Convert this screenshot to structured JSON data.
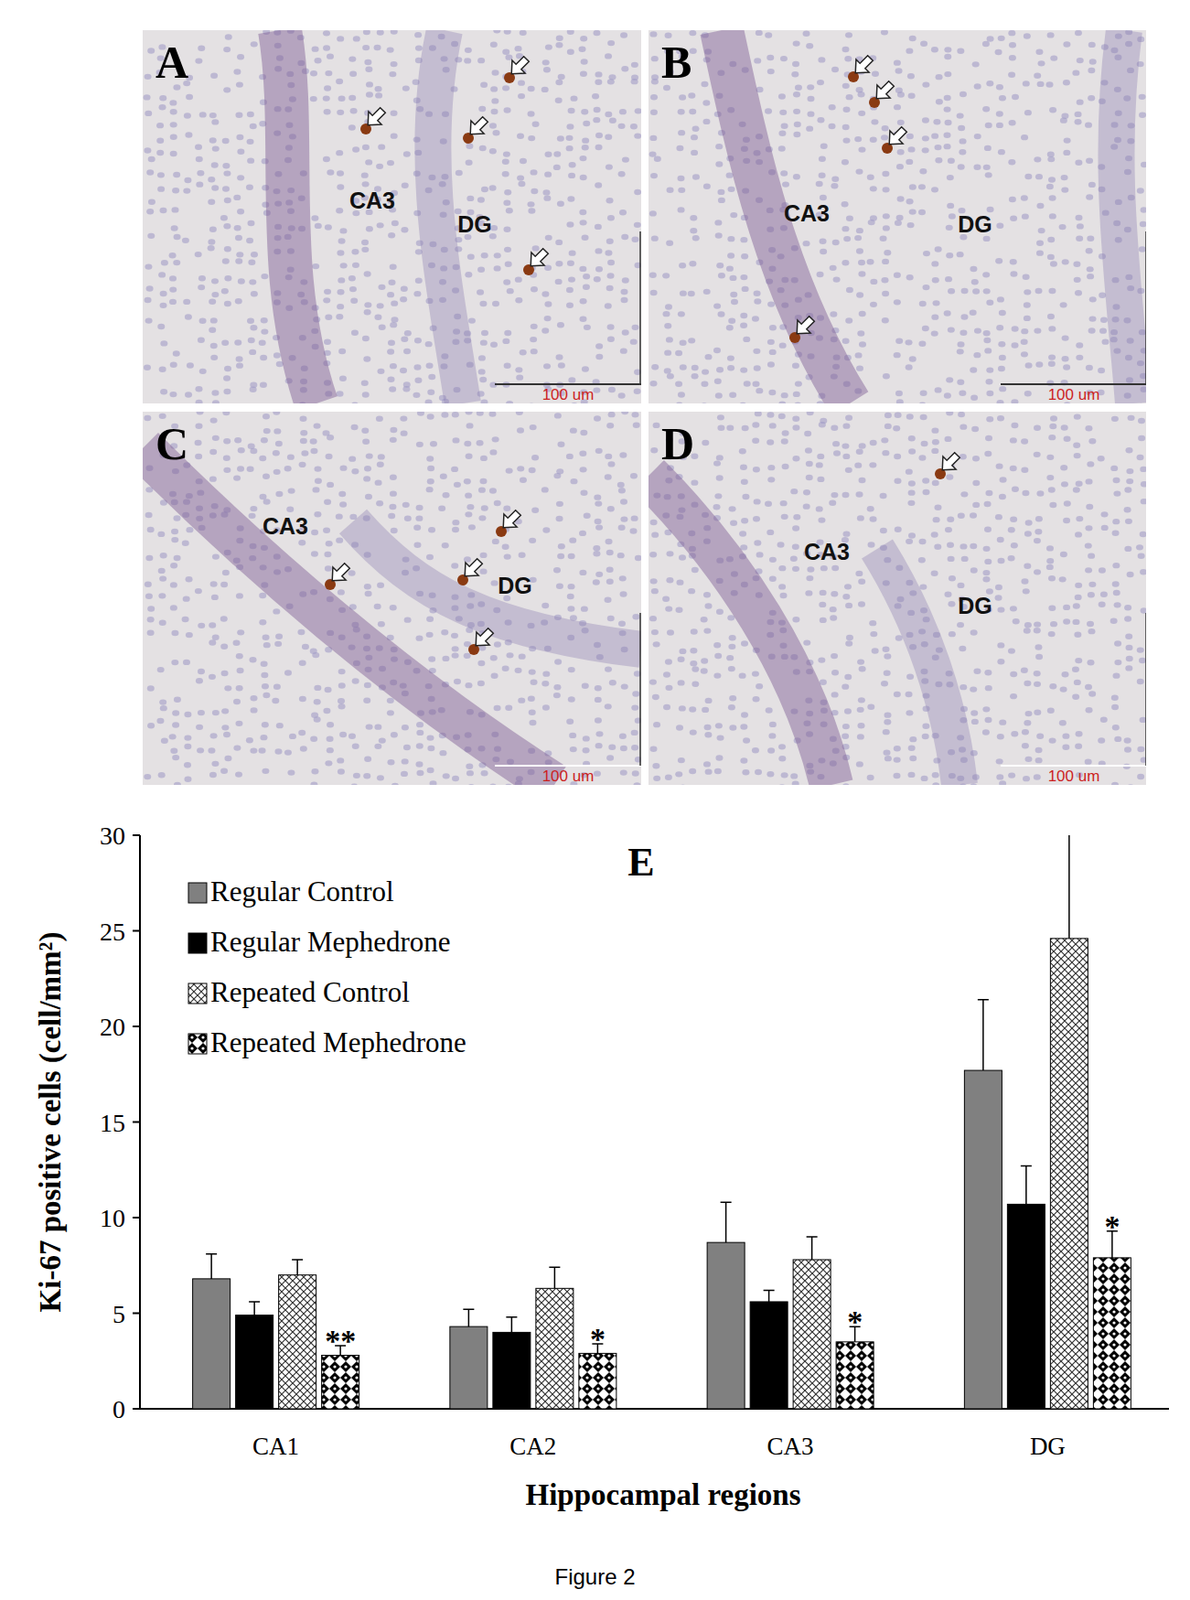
{
  "chart_data": {
    "type": "bar",
    "title": "E",
    "x_label": "Hippocampal regions",
    "y_label": "Ki-67 positive cells (cell/mm²)",
    "categories": [
      "CA1",
      "CA2",
      "CA3",
      "DG"
    ],
    "series": [
      {
        "name": "Regular Control",
        "color": "#808080",
        "marker": "solid",
        "values": [
          6.8,
          4.3,
          8.7,
          17.7
        ],
        "errors": [
          1.3,
          0.9,
          2.1,
          3.7
        ]
      },
      {
        "name": "Regular Mephedrone",
        "color": "#000000",
        "marker": "solid",
        "values": [
          4.9,
          4.0,
          5.6,
          10.7
        ],
        "errors": [
          0.7,
          0.8,
          0.6,
          2.0
        ]
      },
      {
        "name": "Repeated Control",
        "color": "#000000",
        "marker": "crosshatch",
        "values": [
          7.0,
          6.3,
          7.8,
          24.6
        ],
        "errors": [
          0.8,
          1.1,
          1.2,
          6.2
        ]
      },
      {
        "name": "Repeated Mephedrone",
        "color": "#000000",
        "marker": "checker",
        "values": [
          2.8,
          2.9,
          3.5,
          7.9
        ],
        "errors": [
          0.5,
          0.5,
          0.8,
          1.4
        ],
        "significance": [
          "**",
          "*",
          "*",
          "*"
        ]
      }
    ],
    "ylim": [
      0,
      30
    ],
    "yticks": [
      0,
      5,
      10,
      15,
      20,
      25,
      30
    ],
    "grid": false,
    "legend": "top-left"
  },
  "panels": [
    {
      "label": "A",
      "regions": [
        "CA3",
        "DG"
      ],
      "scale_bar": "100 um"
    },
    {
      "label": "B",
      "regions": [
        "CA3",
        "DG"
      ],
      "scale_bar": "100 um"
    },
    {
      "label": "C",
      "regions": [
        "CA3",
        "DG"
      ],
      "scale_bar": "100 um"
    },
    {
      "label": "D",
      "regions": [
        "CA3",
        "DG"
      ],
      "scale_bar": "100 um"
    }
  ],
  "caption": "Figure 2"
}
